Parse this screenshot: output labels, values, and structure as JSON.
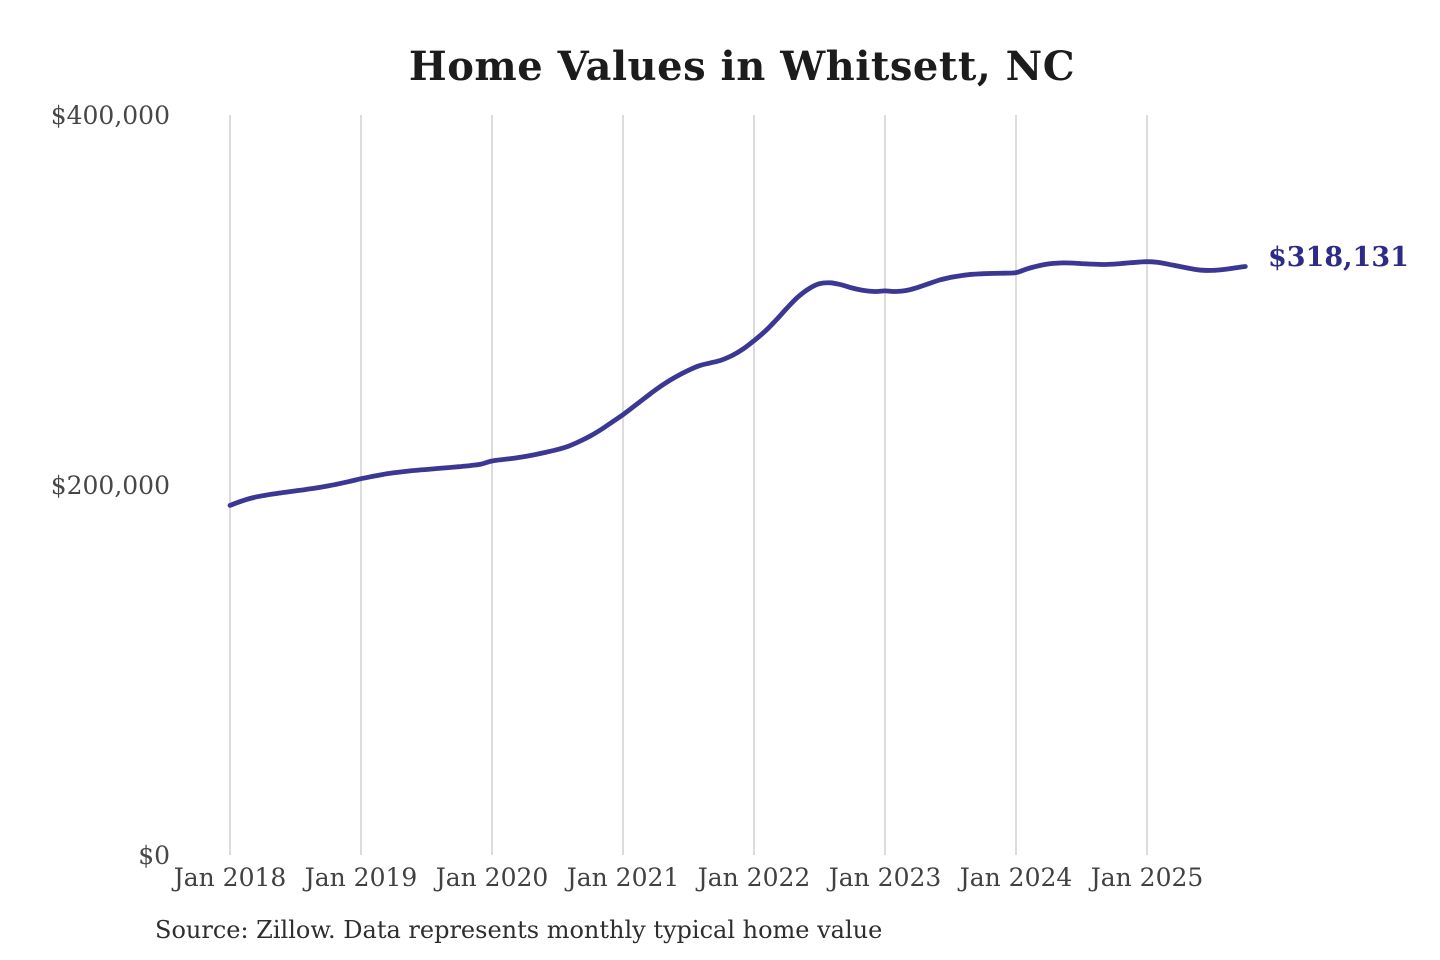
{
  "page": {
    "background": "#ffffff"
  },
  "chart_data": {
    "type": "line",
    "title": "Home Values in Whitsett, NC",
    "source_note": "Source: Zillow. Data represents monthly typical home value",
    "series_name": "Monthly typical home value",
    "line_color": "#3b3894",
    "end_label": "$318,131",
    "end_label_color": "#2d2b86",
    "end_value": 318131,
    "grid": "vertical-only",
    "gridline_color": "#c9c9c9",
    "tick_label_color": "#474747",
    "legend": "none",
    "ylim": [
      0,
      400000
    ],
    "y_ticks": [
      {
        "label": "$0",
        "value": 0
      },
      {
        "label": "$200,000",
        "value": 200000
      },
      {
        "label": "$400,000",
        "value": 400000
      }
    ],
    "x_ticks": [
      {
        "label": "Jan 2018",
        "month": "2018-01"
      },
      {
        "label": "Jan 2019",
        "month": "2019-01"
      },
      {
        "label": "Jan 2020",
        "month": "2020-01"
      },
      {
        "label": "Jan 2021",
        "month": "2021-01"
      },
      {
        "label": "Jan 2022",
        "month": "2022-01"
      },
      {
        "label": "Jan 2023",
        "month": "2023-01"
      },
      {
        "label": "Jan 2024",
        "month": "2024-01"
      },
      {
        "label": "Jan 2025",
        "month": "2025-01"
      }
    ],
    "months": [
      "2018-01",
      "2018-02",
      "2018-03",
      "2018-04",
      "2018-05",
      "2018-06",
      "2018-07",
      "2018-08",
      "2018-09",
      "2018-10",
      "2018-11",
      "2018-12",
      "2019-01",
      "2019-02",
      "2019-03",
      "2019-04",
      "2019-05",
      "2019-06",
      "2019-07",
      "2019-08",
      "2019-09",
      "2019-10",
      "2019-11",
      "2019-12",
      "2020-01",
      "2020-02",
      "2020-03",
      "2020-04",
      "2020-05",
      "2020-06",
      "2020-07",
      "2020-08",
      "2020-09",
      "2020-10",
      "2020-11",
      "2020-12",
      "2021-01",
      "2021-02",
      "2021-03",
      "2021-04",
      "2021-05",
      "2021-06",
      "2021-07",
      "2021-08",
      "2021-09",
      "2021-10",
      "2021-11",
      "2021-12",
      "2022-01",
      "2022-02",
      "2022-03",
      "2022-04",
      "2022-05",
      "2022-06",
      "2022-07",
      "2022-08",
      "2022-09",
      "2022-10",
      "2022-11",
      "2022-12",
      "2023-01",
      "2023-02",
      "2023-03",
      "2023-04",
      "2023-05",
      "2023-06",
      "2023-07",
      "2023-08",
      "2023-09",
      "2023-10",
      "2023-11",
      "2023-12",
      "2024-01",
      "2024-02",
      "2024-03",
      "2024-04",
      "2024-05",
      "2024-06",
      "2024-07",
      "2024-08",
      "2024-09",
      "2024-10",
      "2024-11",
      "2024-12",
      "2025-01",
      "2025-02",
      "2025-03",
      "2025-04",
      "2025-05",
      "2025-06",
      "2025-07",
      "2025-08",
      "2025-09",
      "2025-10"
    ],
    "values": [
      189000,
      191200,
      193000,
      194200,
      195200,
      196000,
      196800,
      197600,
      198500,
      199500,
      200700,
      202000,
      203400,
      204600,
      205700,
      206600,
      207300,
      207900,
      208400,
      208900,
      209400,
      209900,
      210500,
      211300,
      213000,
      213800,
      214500,
      215400,
      216500,
      217800,
      219200,
      221000,
      223500,
      226500,
      230000,
      234000,
      238000,
      242500,
      247000,
      251500,
      255500,
      259000,
      262000,
      264500,
      266000,
      267500,
      270000,
      273500,
      278000,
      283000,
      289000,
      295500,
      301500,
      306000,
      308800,
      309300,
      308200,
      306500,
      305200,
      304600,
      304900,
      304600,
      305200,
      306800,
      308800,
      310800,
      312200,
      313200,
      313900,
      314200,
      314400,
      314500,
      314800,
      316800,
      318400,
      319500,
      320000,
      320000,
      319700,
      319400,
      319200,
      319400,
      319900,
      320400,
      320700,
      320300,
      319300,
      318100,
      317000,
      316100,
      316000,
      316500,
      317300,
      318131
    ]
  }
}
